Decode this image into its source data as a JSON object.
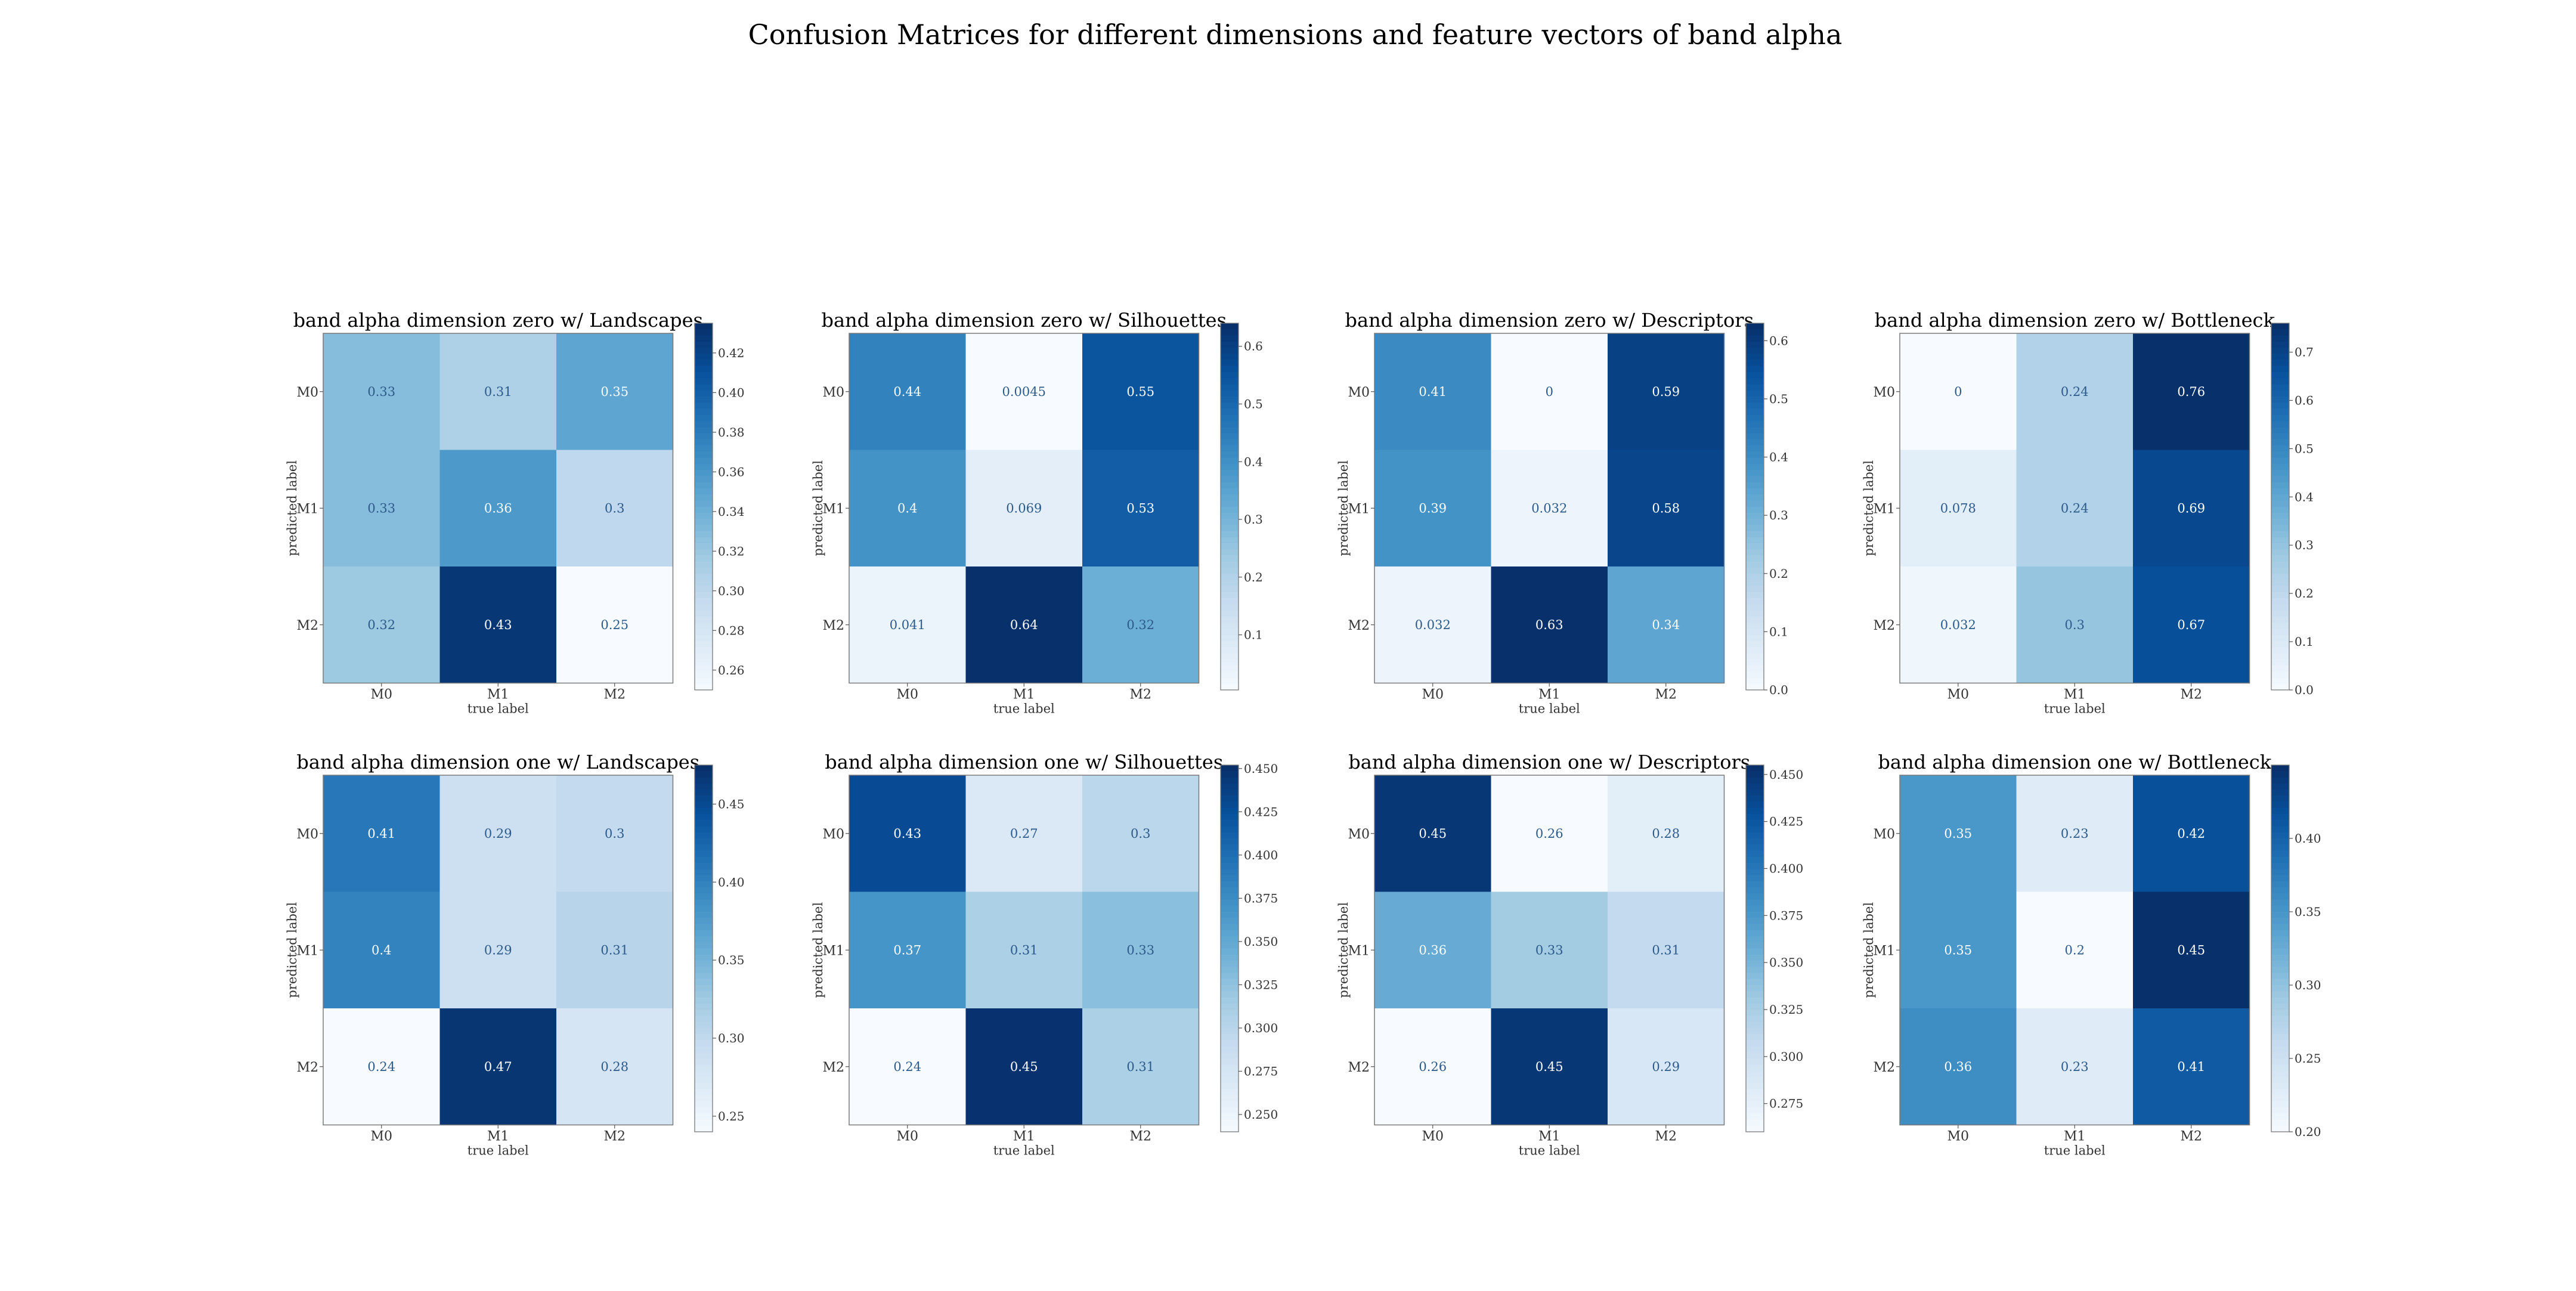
{
  "title": "Confusion Matrices for different dimensions and feature vectors of band alpha",
  "chart_data": {
    "type": "heatmap",
    "colormap": "Blues",
    "layout": "2 rows x 4 columns",
    "panels": [
      {
        "title": "band alpha dimension zero w/ Landscapes",
        "xlabel": "true label",
        "ylabel": "predicted label",
        "x_categories": [
          "M0",
          "M1",
          "M2"
        ],
        "y_categories": [
          "M0",
          "M1",
          "M2"
        ],
        "values": [
          [
            "0.33",
            "0.31",
            "0.35"
          ],
          [
            "0.33",
            "0.36",
            "0.3"
          ],
          [
            "0.32",
            "0.43",
            "0.25"
          ]
        ],
        "colorbar_range": [
          0.25,
          0.435
        ],
        "colorbar_ticks": [
          "0.26",
          "0.28",
          "0.30",
          "0.32",
          "0.34",
          "0.36",
          "0.38",
          "0.40",
          "0.42"
        ]
      },
      {
        "title": "band alpha dimension zero w/ Silhouettes",
        "xlabel": "true label",
        "ylabel": "predicted label",
        "x_categories": [
          "M0",
          "M1",
          "M2"
        ],
        "y_categories": [
          "M0",
          "M1",
          "M2"
        ],
        "values": [
          [
            "0.44",
            "0.0045",
            "0.55"
          ],
          [
            "0.4",
            "0.069",
            "0.53"
          ],
          [
            "0.041",
            "0.64",
            "0.32"
          ]
        ],
        "colorbar_range": [
          0.0045,
          0.64
        ],
        "colorbar_ticks": [
          "0.1",
          "0.2",
          "0.3",
          "0.4",
          "0.5",
          "0.6"
        ]
      },
      {
        "title": "band alpha dimension zero w/ Descriptors",
        "xlabel": "true label",
        "ylabel": "predicted label",
        "x_categories": [
          "M0",
          "M1",
          "M2"
        ],
        "y_categories": [
          "M0",
          "M1",
          "M2"
        ],
        "values": [
          [
            "0.41",
            "0",
            "0.59"
          ],
          [
            "0.39",
            "0.032",
            "0.58"
          ],
          [
            "0.032",
            "0.63",
            "0.34"
          ]
        ],
        "colorbar_range": [
          0,
          0.63
        ],
        "colorbar_ticks": [
          "0.0",
          "0.1",
          "0.2",
          "0.3",
          "0.4",
          "0.5",
          "0.6"
        ]
      },
      {
        "title": "band alpha dimension zero w/ Bottleneck",
        "xlabel": "true label",
        "ylabel": "predicted label",
        "x_categories": [
          "M0",
          "M1",
          "M2"
        ],
        "y_categories": [
          "M0",
          "M1",
          "M2"
        ],
        "values": [
          [
            "0",
            "0.24",
            "0.76"
          ],
          [
            "0.078",
            "0.24",
            "0.69"
          ],
          [
            "0.032",
            "0.3",
            "0.67"
          ]
        ],
        "colorbar_range": [
          0,
          0.76
        ],
        "colorbar_ticks": [
          "0.0",
          "0.1",
          "0.2",
          "0.3",
          "0.4",
          "0.5",
          "0.6",
          "0.7"
        ]
      },
      {
        "title": "band alpha dimension one w/ Landscapes",
        "xlabel": "true label",
        "ylabel": "predicted label",
        "x_categories": [
          "M0",
          "M1",
          "M2"
        ],
        "y_categories": [
          "M0",
          "M1",
          "M2"
        ],
        "values": [
          [
            "0.41",
            "0.29",
            "0.3"
          ],
          [
            "0.4",
            "0.29",
            "0.31"
          ],
          [
            "0.24",
            "0.47",
            "0.28"
          ]
        ],
        "colorbar_range": [
          0.24,
          0.475
        ],
        "colorbar_ticks": [
          "0.25",
          "0.30",
          "0.35",
          "0.40",
          "0.45"
        ]
      },
      {
        "title": "band alpha dimension one w/ Silhouettes",
        "xlabel": "true label",
        "ylabel": "predicted label",
        "x_categories": [
          "M0",
          "M1",
          "M2"
        ],
        "y_categories": [
          "M0",
          "M1",
          "M2"
        ],
        "values": [
          [
            "0.43",
            "0.27",
            "0.3"
          ],
          [
            "0.37",
            "0.31",
            "0.33"
          ],
          [
            "0.24",
            "0.45",
            "0.31"
          ]
        ],
        "colorbar_range": [
          0.24,
          0.452
        ],
        "colorbar_ticks": [
          "0.250",
          "0.275",
          "0.300",
          "0.325",
          "0.350",
          "0.375",
          "0.400",
          "0.425",
          "0.450"
        ]
      },
      {
        "title": "band alpha dimension one w/ Descriptors",
        "xlabel": "true label",
        "ylabel": "predicted label",
        "x_categories": [
          "M0",
          "M1",
          "M2"
        ],
        "y_categories": [
          "M0",
          "M1",
          "M2"
        ],
        "values": [
          [
            "0.45",
            "0.26",
            "0.28"
          ],
          [
            "0.36",
            "0.33",
            "0.31"
          ],
          [
            "0.26",
            "0.45",
            "0.29"
          ]
        ],
        "colorbar_range": [
          0.26,
          0.455
        ],
        "colorbar_ticks": [
          "0.275",
          "0.300",
          "0.325",
          "0.350",
          "0.375",
          "0.400",
          "0.425",
          "0.450"
        ]
      },
      {
        "title": "band alpha dimension one w/ Bottleneck",
        "xlabel": "true label",
        "ylabel": "predicted label",
        "x_categories": [
          "M0",
          "M1",
          "M2"
        ],
        "y_categories": [
          "M0",
          "M1",
          "M2"
        ],
        "values": [
          [
            "0.35",
            "0.23",
            "0.42"
          ],
          [
            "0.35",
            "0.2",
            "0.45"
          ],
          [
            "0.36",
            "0.23",
            "0.41"
          ]
        ],
        "colorbar_range": [
          0.2,
          0.45
        ],
        "colorbar_ticks": [
          "0.20",
          "0.25",
          "0.30",
          "0.35",
          "0.40"
        ]
      }
    ]
  }
}
